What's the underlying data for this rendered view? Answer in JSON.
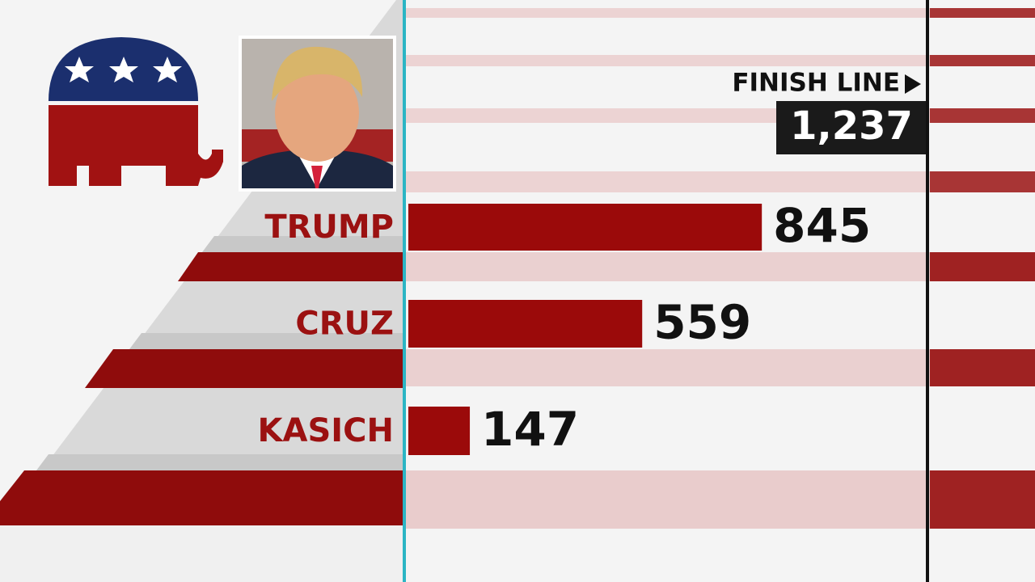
{
  "chart_data": {
    "type": "bar",
    "orientation": "horizontal",
    "categories": [
      "TRUMP",
      "CRUZ",
      "KASICH"
    ],
    "values": [
      845,
      559,
      147
    ],
    "color": "#9b0a0a",
    "xlim": [
      0,
      1237
    ],
    "finish_line_title": "FINISH LINE",
    "finish_line": {
      "value": 1237,
      "label": "1,237"
    }
  }
}
